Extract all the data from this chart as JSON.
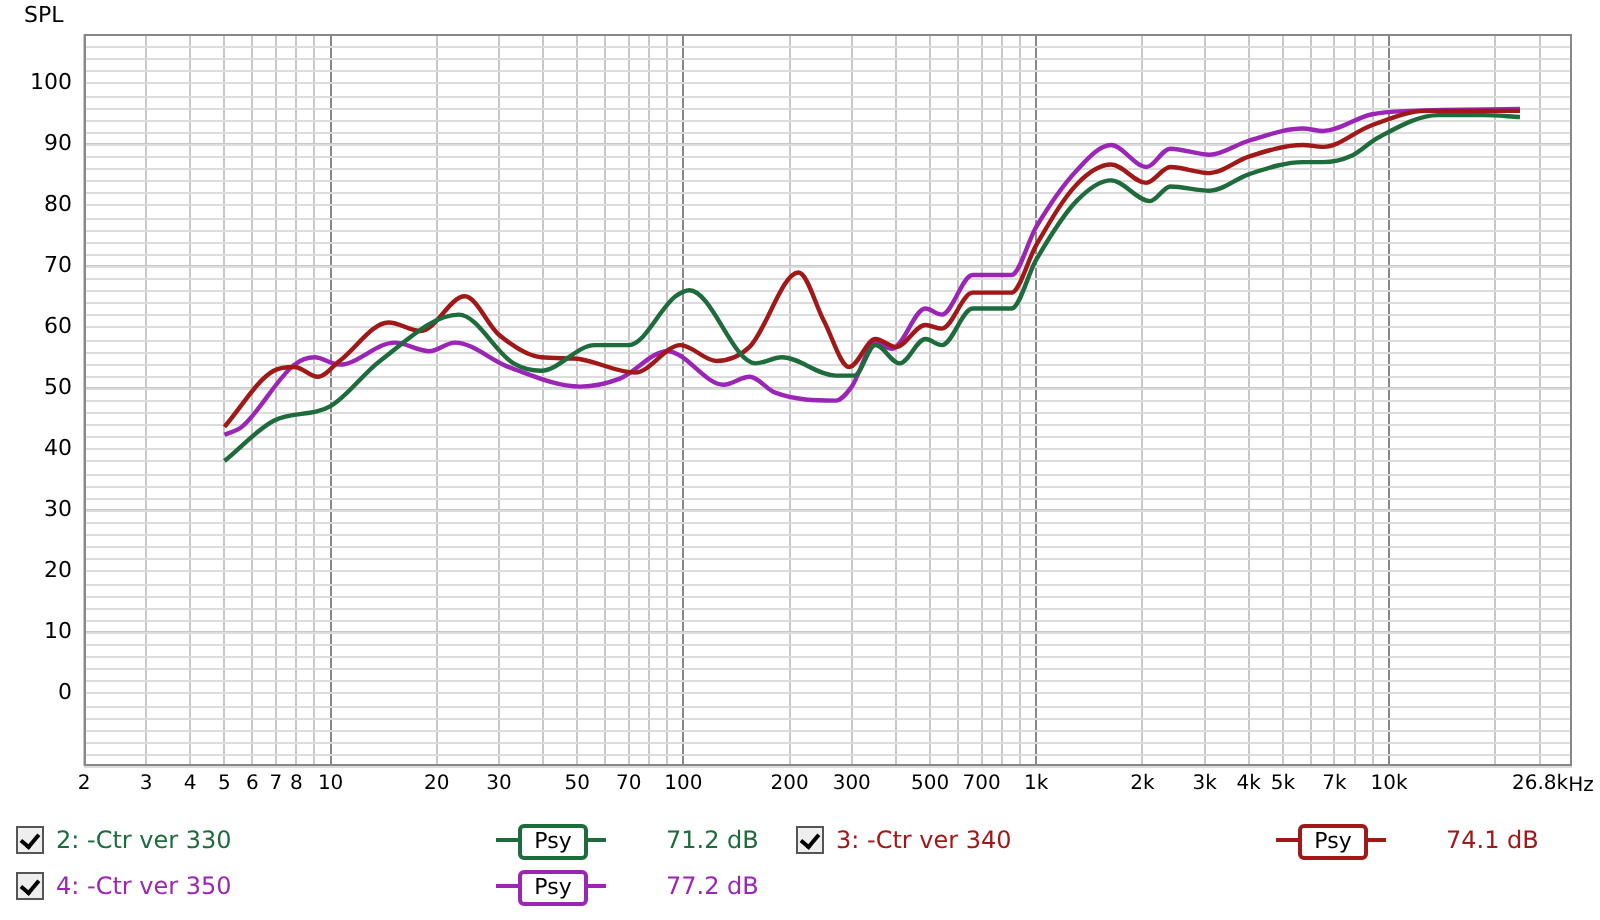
{
  "chart_data": {
    "type": "line",
    "ylabel": "SPL",
    "log": "x",
    "grid": true,
    "legend": "bottom",
    "marker": "none",
    "line_style": "solid",
    "xlim": [
      2,
      33000
    ],
    "ylim": [
      -12,
      108
    ],
    "xticks": [
      2,
      3,
      4,
      5,
      6,
      7,
      8,
      {
        "value": 9,
        "label": null
      },
      10,
      20,
      30,
      {
        "value": 40,
        "label": null
      },
      50,
      {
        "value": 60,
        "label": null
      },
      70,
      {
        "value": 80,
        "label": null
      },
      {
        "value": 90,
        "label": null
      },
      100,
      200,
      300,
      {
        "value": 400,
        "label": null
      },
      500,
      {
        "value": 600,
        "label": null
      },
      700,
      {
        "value": 800,
        "label": null
      },
      {
        "value": 900,
        "label": null
      },
      {
        "value": 1000,
        "label": "1k"
      },
      {
        "value": 2000,
        "label": "2k"
      },
      {
        "value": 3000,
        "label": "3k"
      },
      {
        "value": 4000,
        "label": "4k"
      },
      {
        "value": 5000,
        "label": "5k"
      },
      {
        "value": 6000,
        "label": null
      },
      {
        "value": 7000,
        "label": "7k"
      },
      {
        "value": 8000,
        "label": null
      },
      {
        "value": 9000,
        "label": null
      },
      {
        "value": 10000,
        "label": "10k"
      },
      {
        "value": 20000,
        "label": null
      },
      {
        "value": 26800,
        "label": "26.8k"
      }
    ],
    "xlabel": "Hz",
    "yticks": [
      0,
      10,
      20,
      30,
      40,
      50,
      60,
      70,
      80,
      90,
      100
    ],
    "annotations": [
      "Psy",
      "71.2 dB",
      "Psy",
      "74.1 dB",
      "Psy",
      "77.2 dB"
    ],
    "series": [
      {
        "name": "2: -Ctr ver 330",
        "color": "#1e6b3c",
        "x": [
          5,
          6.9,
          10,
          13.8,
          23.1,
          33,
          39.5,
          56,
          70,
          95,
          104,
          160,
          190,
          270,
          305,
          350,
          410,
          485,
          540,
          660,
          850,
          1000,
          1300,
          1630,
          2100,
          2400,
          3100,
          4000,
          5700,
          6500,
          7800,
          9300,
          13800,
          18500,
          23500
        ],
        "values": [
          38,
          44.6,
          47,
          54.4,
          62,
          54,
          52.8,
          57,
          57,
          65,
          66,
          54,
          55,
          52,
          52,
          57,
          54,
          58,
          57,
          63,
          63,
          71,
          80.6,
          84,
          80.6,
          83,
          82.3,
          85,
          87,
          87,
          88,
          91,
          94.7,
          94.7,
          94.4
        ]
      },
      {
        "name": "3: -Ctr ver 340",
        "color": "#a01818",
        "x": [
          5,
          6.9,
          7.9,
          9.2,
          10.6,
          14.6,
          18,
          24,
          30,
          39.5,
          49,
          73,
          98,
          124,
          154,
          212,
          250,
          295,
          350,
          400,
          485,
          540,
          660,
          850,
          1000,
          1300,
          1630,
          2050,
          2400,
          3100,
          4000,
          5700,
          6500,
          8900,
          12700,
          23500
        ],
        "values": [
          43.6,
          52.8,
          53.4,
          51.8,
          54.4,
          60.7,
          59.3,
          65,
          58.7,
          55,
          54.8,
          52.5,
          57,
          54.4,
          56.7,
          68.9,
          61,
          53.4,
          58,
          56.7,
          60.3,
          59.7,
          65.6,
          65.6,
          73.4,
          83.3,
          86.6,
          83.6,
          86.2,
          85.2,
          87.9,
          89.8,
          89.5,
          93,
          95.4,
          95.4
        ]
      },
      {
        "name": "4: -Ctr ver 350",
        "color": "#9b26b6",
        "x": [
          5,
          5.6,
          7.9,
          9,
          10.6,
          15.2,
          19,
          22.5,
          32,
          51,
          66,
          90,
          130,
          154,
          182,
          270,
          300,
          350,
          390,
          485,
          540,
          660,
          850,
          1000,
          1300,
          1630,
          2050,
          2400,
          3100,
          4000,
          5700,
          6500,
          8900,
          11500,
          23500
        ],
        "values": [
          42.3,
          43.6,
          53.8,
          55,
          53.8,
          57.4,
          56,
          57.4,
          53.4,
          50.2,
          51.5,
          56,
          50.5,
          51.8,
          49.2,
          47.9,
          50.2,
          57.4,
          56.4,
          63,
          62,
          68.5,
          68.5,
          76.4,
          85.6,
          89.8,
          86.2,
          89.2,
          88.2,
          90.5,
          92.5,
          92.1,
          94.8,
          95.4,
          95.7
        ]
      }
    ]
  }
}
